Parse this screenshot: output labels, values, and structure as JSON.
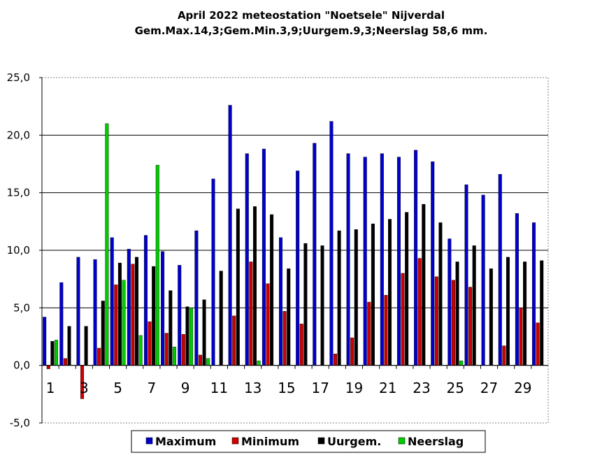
{
  "chart_data": {
    "type": "bar",
    "title": "April 2022 meteostation \"Noetsele\" Nijverdal",
    "subtitle": "Gem.Max.14,3;Gem.Min.3,9;Uurgem.9,3;Neerslag 58,6 mm.",
    "ylim": [
      -5,
      25
    ],
    "yticks": [
      "25,0",
      "20,0",
      "15,0",
      "10,0",
      "5,0",
      "0,0",
      "-5,0"
    ],
    "ytick_values": [
      25,
      20,
      15,
      10,
      5,
      0,
      -5
    ],
    "categories": [
      1,
      2,
      3,
      4,
      5,
      6,
      7,
      8,
      9,
      10,
      11,
      12,
      13,
      14,
      15,
      16,
      17,
      18,
      19,
      20,
      21,
      22,
      23,
      24,
      25,
      26,
      27,
      28,
      29,
      30
    ],
    "xtick_labels": [
      "1",
      "3",
      "5",
      "7",
      "9",
      "11",
      "13",
      "15",
      "17",
      "19",
      "21",
      "23",
      "25",
      "27",
      "29"
    ],
    "grid": "horizontal",
    "legend_position": "bottom",
    "series": [
      {
        "name": "Maximum",
        "color": "#0000cc",
        "values": [
          4.2,
          7.2,
          9.4,
          9.2,
          11.1,
          10.1,
          11.3,
          9.9,
          8.7,
          11.7,
          16.2,
          22.6,
          18.4,
          18.8,
          11.1,
          16.9,
          19.3,
          21.2,
          18.4,
          18.1,
          18.4,
          18.1,
          18.7,
          17.7,
          11.0,
          15.7,
          14.8,
          16.6,
          13.2,
          12.4
        ]
      },
      {
        "name": "Minimum",
        "color": "#cc0000",
        "values": [
          -0.3,
          0.6,
          -2.9,
          1.5,
          7.0,
          8.8,
          3.8,
          2.8,
          2.7,
          0.9,
          0.0,
          4.3,
          9.0,
          7.1,
          4.7,
          3.6,
          0.0,
          1.0,
          2.4,
          5.5,
          6.1,
          8.0,
          9.3,
          7.7,
          7.4,
          6.8,
          0.0,
          1.7,
          5.0,
          3.7
        ]
      },
      {
        "name": "Uurgem.",
        "color": "#000000",
        "values": [
          2.1,
          3.4,
          3.4,
          5.6,
          8.9,
          9.4,
          8.6,
          6.5,
          5.1,
          5.7,
          8.2,
          13.6,
          13.8,
          13.1,
          8.4,
          10.6,
          10.4,
          11.7,
          11.8,
          12.3,
          12.7,
          13.3,
          14.0,
          12.4,
          9.0,
          10.4,
          8.4,
          9.4,
          9.0,
          9.1
        ]
      },
      {
        "name": "Neerslag",
        "color": "#00cc00",
        "values": [
          2.2,
          0.0,
          0.0,
          21.0,
          7.4,
          2.6,
          17.4,
          1.6,
          5.0,
          0.6,
          0.0,
          0.0,
          0.4,
          0.0,
          0.0,
          0.0,
          0.0,
          0.0,
          0.0,
          0.0,
          0.0,
          0.0,
          0.0,
          0.0,
          0.4,
          0.0,
          0.0,
          0.0,
          0.0,
          0.0
        ]
      }
    ]
  }
}
